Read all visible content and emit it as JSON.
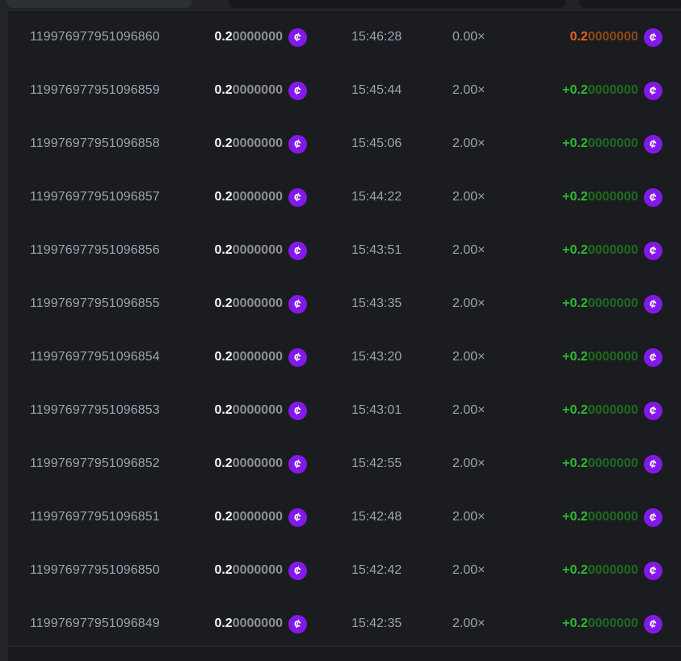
{
  "colors": {
    "page_bg": "#232428",
    "table_bg": "#1b1c20",
    "toolbar_bg": "#222328",
    "toolbar_button_bg": "#2e3037",
    "toolbar_input_bg": "#17181b",
    "muted_text": "#9aa3b0",
    "amount_text": "#f2f4f6",
    "amount_zeros": "#8b9096",
    "win_bright": "#2db92d",
    "win_dim": "#1e6b1e",
    "loss_bright": "#e8611a",
    "loss_dim": "#8c4a12",
    "coin_bg": "#8319e8"
  },
  "icons": {
    "coin_glyph": "¢"
  },
  "table": {
    "rows": [
      {
        "id": "119976977951096860",
        "amount_main": "0.2",
        "amount_zeros": "0000000",
        "time": "15:46:28",
        "multiplier": "0.00×",
        "payout_main": "0.2",
        "payout_zeros": "0000000",
        "result": "loss"
      },
      {
        "id": "119976977951096859",
        "amount_main": "0.2",
        "amount_zeros": "0000000",
        "time": "15:45:44",
        "multiplier": "2.00×",
        "payout_main": "+0.2",
        "payout_zeros": "0000000",
        "result": "win"
      },
      {
        "id": "119976977951096858",
        "amount_main": "0.2",
        "amount_zeros": "0000000",
        "time": "15:45:06",
        "multiplier": "2.00×",
        "payout_main": "+0.2",
        "payout_zeros": "0000000",
        "result": "win"
      },
      {
        "id": "119976977951096857",
        "amount_main": "0.2",
        "amount_zeros": "0000000",
        "time": "15:44:22",
        "multiplier": "2.00×",
        "payout_main": "+0.2",
        "payout_zeros": "0000000",
        "result": "win"
      },
      {
        "id": "119976977951096856",
        "amount_main": "0.2",
        "amount_zeros": "0000000",
        "time": "15:43:51",
        "multiplier": "2.00×",
        "payout_main": "+0.2",
        "payout_zeros": "0000000",
        "result": "win"
      },
      {
        "id": "119976977951096855",
        "amount_main": "0.2",
        "amount_zeros": "0000000",
        "time": "15:43:35",
        "multiplier": "2.00×",
        "payout_main": "+0.2",
        "payout_zeros": "0000000",
        "result": "win"
      },
      {
        "id": "119976977951096854",
        "amount_main": "0.2",
        "amount_zeros": "0000000",
        "time": "15:43:20",
        "multiplier": "2.00×",
        "payout_main": "+0.2",
        "payout_zeros": "0000000",
        "result": "win"
      },
      {
        "id": "119976977951096853",
        "amount_main": "0.2",
        "amount_zeros": "0000000",
        "time": "15:43:01",
        "multiplier": "2.00×",
        "payout_main": "+0.2",
        "payout_zeros": "0000000",
        "result": "win"
      },
      {
        "id": "119976977951096852",
        "amount_main": "0.2",
        "amount_zeros": "0000000",
        "time": "15:42:55",
        "multiplier": "2.00×",
        "payout_main": "+0.2",
        "payout_zeros": "0000000",
        "result": "win"
      },
      {
        "id": "119976977951096851",
        "amount_main": "0.2",
        "amount_zeros": "0000000",
        "time": "15:42:48",
        "multiplier": "2.00×",
        "payout_main": "+0.2",
        "payout_zeros": "0000000",
        "result": "win"
      },
      {
        "id": "119976977951096850",
        "amount_main": "0.2",
        "amount_zeros": "0000000",
        "time": "15:42:42",
        "multiplier": "2.00×",
        "payout_main": "+0.2",
        "payout_zeros": "0000000",
        "result": "win"
      },
      {
        "id": "119976977951096849",
        "amount_main": "0.2",
        "amount_zeros": "0000000",
        "time": "15:42:35",
        "multiplier": "2.00×",
        "payout_main": "+0.2",
        "payout_zeros": "0000000",
        "result": "win"
      }
    ]
  }
}
